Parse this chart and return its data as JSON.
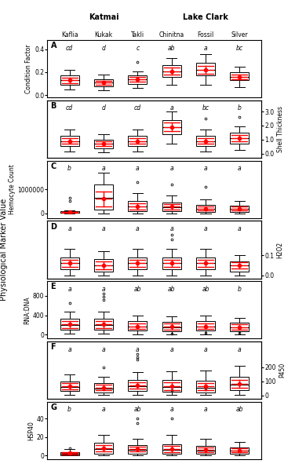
{
  "sites": [
    "Kaflia",
    "Kukak",
    "Takli",
    "Chinitna",
    "Fossil",
    "Silver"
  ],
  "panels": [
    {
      "label": "A",
      "ylabel_left": "Condition Factor",
      "ylabel_right": null,
      "yticks_left": [
        0.0,
        0.2,
        0.4
      ],
      "yticks_right": null,
      "ymin": -0.02,
      "ymax": 0.48,
      "sig_letters": [
        "cd",
        "d",
        "c",
        "ab",
        "a",
        "bc"
      ],
      "data": {
        "Kaflia": {
          "q1": 0.09,
          "med": 0.13,
          "q3": 0.17,
          "lo": 0.05,
          "hi": 0.22,
          "mean": 0.13,
          "outliers": []
        },
        "Kukak": {
          "q1": 0.08,
          "med": 0.11,
          "q3": 0.14,
          "lo": 0.04,
          "hi": 0.18,
          "mean": 0.11,
          "outliers": []
        },
        "Takli": {
          "q1": 0.1,
          "med": 0.14,
          "q3": 0.17,
          "lo": 0.06,
          "hi": 0.21,
          "mean": 0.14,
          "outliers": [
            0.29
          ]
        },
        "Chinitna": {
          "q1": 0.16,
          "med": 0.21,
          "q3": 0.26,
          "lo": 0.09,
          "hi": 0.32,
          "mean": 0.21,
          "outliers": []
        },
        "Fossil": {
          "q1": 0.17,
          "med": 0.22,
          "q3": 0.28,
          "lo": 0.09,
          "hi": 0.36,
          "mean": 0.22,
          "outliers": []
        },
        "Silver": {
          "q1": 0.13,
          "med": 0.16,
          "q3": 0.2,
          "lo": 0.07,
          "hi": 0.25,
          "mean": 0.16,
          "outliers": []
        }
      }
    },
    {
      "label": "B",
      "ylabel_left": null,
      "ylabel_right": "Shell Thickness",
      "yticks_left": null,
      "yticks_right": [
        0.0,
        1.0,
        2.0,
        3.0
      ],
      "ymin": -0.3,
      "ymax": 3.8,
      "sig_letters": [
        "cd",
        "d",
        "cd",
        "a",
        "bc",
        "b"
      ],
      "data": {
        "Kaflia": {
          "q1": 0.55,
          "med": 0.9,
          "q3": 1.25,
          "lo": 0.15,
          "hi": 1.7,
          "mean": 0.9,
          "outliers": []
        },
        "Kukak": {
          "q1": 0.4,
          "med": 0.7,
          "q3": 1.0,
          "lo": 0.1,
          "hi": 1.4,
          "mean": 0.7,
          "outliers": []
        },
        "Takli": {
          "q1": 0.55,
          "med": 0.9,
          "q3": 1.25,
          "lo": 0.15,
          "hi": 1.7,
          "mean": 0.9,
          "outliers": []
        },
        "Chinitna": {
          "q1": 1.4,
          "med": 1.9,
          "q3": 2.4,
          "lo": 0.7,
          "hi": 3.0,
          "mean": 1.9,
          "outliers": []
        },
        "Fossil": {
          "q1": 0.55,
          "med": 0.9,
          "q3": 1.25,
          "lo": 0.15,
          "hi": 1.7,
          "mean": 0.9,
          "outliers": [
            2.5
          ]
        },
        "Silver": {
          "q1": 0.7,
          "med": 1.1,
          "q3": 1.5,
          "lo": 0.25,
          "hi": 1.95,
          "mean": 1.1,
          "outliers": [
            2.6
          ]
        }
      }
    },
    {
      "label": "C",
      "ylabel_left": "Hemocyte Count",
      "ylabel_right": null,
      "yticks_left": [
        0,
        1000000
      ],
      "yticks_right": null,
      "ymin": -200000,
      "ymax": 2200000,
      "sig_letters": [
        "b",
        "a",
        "a",
        "a",
        "a",
        "a"
      ],
      "data": {
        "Kaflia": {
          "q1": 10000,
          "med": 30000,
          "q3": 80000,
          "lo": 0,
          "hi": 120000,
          "mean": 40000,
          "outliers": [
            500000,
            650000
          ]
        },
        "Kukak": {
          "q1": 150000,
          "med": 650000,
          "q3": 1200000,
          "lo": 0,
          "hi": 1700000,
          "mean": 600000,
          "outliers": []
        },
        "Takli": {
          "q1": 100000,
          "med": 280000,
          "q3": 500000,
          "lo": 0,
          "hi": 850000,
          "mean": 280000,
          "outliers": [
            1300000
          ]
        },
        "Chinitna": {
          "q1": 80000,
          "med": 250000,
          "q3": 450000,
          "lo": 0,
          "hi": 750000,
          "mean": 280000,
          "outliers": [
            1200000
          ]
        },
        "Fossil": {
          "q1": 50000,
          "med": 180000,
          "q3": 350000,
          "lo": 0,
          "hi": 580000,
          "mean": 200000,
          "outliers": [
            1100000
          ]
        },
        "Silver": {
          "q1": 50000,
          "med": 180000,
          "q3": 330000,
          "lo": 0,
          "hi": 530000,
          "mean": 190000,
          "outliers": []
        }
      }
    },
    {
      "label": "D",
      "ylabel_left": null,
      "ylabel_right": "H2O2",
      "yticks_left": null,
      "yticks_right": [
        0.0,
        0.1
      ],
      "ymin": -0.015,
      "ymax": 0.27,
      "sig_letters": [
        "a",
        "a",
        "a",
        "a",
        "a",
        "a"
      ],
      "data": {
        "Kaflia": {
          "q1": 0.03,
          "med": 0.06,
          "q3": 0.09,
          "lo": 0.0,
          "hi": 0.13,
          "mean": 0.06,
          "outliers": []
        },
        "Kukak": {
          "q1": 0.02,
          "med": 0.05,
          "q3": 0.08,
          "lo": 0.0,
          "hi": 0.12,
          "mean": 0.05,
          "outliers": []
        },
        "Takli": {
          "q1": 0.03,
          "med": 0.06,
          "q3": 0.09,
          "lo": 0.0,
          "hi": 0.13,
          "mean": 0.06,
          "outliers": []
        },
        "Chinitna": {
          "q1": 0.03,
          "med": 0.06,
          "q3": 0.09,
          "lo": 0.0,
          "hi": 0.13,
          "mean": 0.06,
          "outliers": [
            0.18,
            0.2
          ]
        },
        "Fossil": {
          "q1": 0.03,
          "med": 0.06,
          "q3": 0.09,
          "lo": 0.0,
          "hi": 0.13,
          "mean": 0.06,
          "outliers": []
        },
        "Silver": {
          "q1": 0.02,
          "med": 0.05,
          "q3": 0.07,
          "lo": 0.0,
          "hi": 0.1,
          "mean": 0.05,
          "outliers": []
        }
      }
    },
    {
      "label": "E",
      "ylabel_left": "RNA:DNA",
      "ylabel_right": null,
      "yticks_left": [
        0,
        400,
        800
      ],
      "yticks_right": null,
      "ymin": -80,
      "ymax": 1100,
      "sig_letters": [
        "a",
        "a",
        "ab",
        "ab",
        "ab",
        "b"
      ],
      "data": {
        "Kaflia": {
          "q1": 100,
          "med": 200,
          "q3": 330,
          "lo": 20,
          "hi": 470,
          "mean": 210,
          "outliers": [
            650
          ]
        },
        "Kukak": {
          "q1": 100,
          "med": 200,
          "q3": 330,
          "lo": 20,
          "hi": 470,
          "mean": 210,
          "outliers": [
            720,
            780,
            840
          ]
        },
        "Takli": {
          "q1": 80,
          "med": 170,
          "q3": 280,
          "lo": 10,
          "hi": 390,
          "mean": 175,
          "outliers": []
        },
        "Chinitna": {
          "q1": 70,
          "med": 160,
          "q3": 270,
          "lo": 10,
          "hi": 380,
          "mean": 165,
          "outliers": [
            30
          ]
        },
        "Fossil": {
          "q1": 80,
          "med": 170,
          "q3": 280,
          "lo": 10,
          "hi": 390,
          "mean": 175,
          "outliers": [
            40
          ]
        },
        "Silver": {
          "q1": 70,
          "med": 155,
          "q3": 250,
          "lo": 10,
          "hi": 350,
          "mean": 160,
          "outliers": [
            40
          ]
        }
      }
    },
    {
      "label": "F",
      "ylabel_left": null,
      "ylabel_right": "P450",
      "yticks_left": null,
      "yticks_right": [
        0,
        100,
        200
      ],
      "ymin": -25,
      "ymax": 380,
      "sig_letters": [
        "a",
        "a",
        "a",
        "a",
        "a",
        "a"
      ],
      "data": {
        "Kaflia": {
          "q1": 30,
          "med": 60,
          "q3": 100,
          "lo": 5,
          "hi": 150,
          "mean": 65,
          "outliers": []
        },
        "Kukak": {
          "q1": 20,
          "med": 50,
          "q3": 85,
          "lo": 5,
          "hi": 130,
          "mean": 55,
          "outliers": [
            200
          ]
        },
        "Takli": {
          "q1": 30,
          "med": 65,
          "q3": 110,
          "lo": 5,
          "hi": 165,
          "mean": 70,
          "outliers": [
            250,
            270,
            290
          ]
        },
        "Chinitna": {
          "q1": 25,
          "med": 60,
          "q3": 110,
          "lo": 5,
          "hi": 170,
          "mean": 65,
          "outliers": [
            35
          ]
        },
        "Fossil": {
          "q1": 20,
          "med": 55,
          "q3": 105,
          "lo": 5,
          "hi": 175,
          "mean": 62,
          "outliers": [
            45
          ]
        },
        "Silver": {
          "q1": 35,
          "med": 75,
          "q3": 130,
          "lo": 5,
          "hi": 210,
          "mean": 80,
          "outliers": []
        }
      }
    },
    {
      "label": "G",
      "ylabel_left": "HSP40",
      "ylabel_right": null,
      "yticks_left": [
        0,
        20,
        40
      ],
      "yticks_right": null,
      "ymin": -4,
      "ymax": 58,
      "sig_letters": [
        "b",
        "a",
        "ab",
        "a",
        "a",
        "ab"
      ],
      "data": {
        "Kaflia": {
          "q1": 0.5,
          "med": 2,
          "q3": 4,
          "lo": 0,
          "hi": 7,
          "mean": 2.5,
          "outliers": [
            8
          ]
        },
        "Kukak": {
          "q1": 2,
          "med": 7,
          "q3": 14,
          "lo": 0,
          "hi": 22,
          "mean": 8,
          "outliers": []
        },
        "Takli": {
          "q1": 2,
          "med": 6,
          "q3": 11,
          "lo": 0,
          "hi": 18,
          "mean": 7,
          "outliers": [
            35,
            40
          ]
        },
        "Chinitna": {
          "q1": 2,
          "med": 6,
          "q3": 12,
          "lo": 0,
          "hi": 22,
          "mean": 7,
          "outliers": [
            40
          ]
        },
        "Fossil": {
          "q1": 2,
          "med": 5,
          "q3": 10,
          "lo": 0,
          "hi": 18,
          "mean": 6,
          "outliers": []
        },
        "Silver": {
          "q1": 2,
          "med": 5,
          "q3": 9,
          "lo": 0,
          "hi": 15,
          "mean": 5.5,
          "outliers": []
        }
      }
    }
  ],
  "box_color": "white",
  "median_color": "black",
  "mean_color": "red",
  "whisker_color": "black",
  "outlier_color": "black",
  "fig_bg": "white",
  "title_katmai": "Katmai",
  "title_lakeclark": "Lake Clark",
  "main_ylabel": "Physiological Marker Value",
  "n_sites": 6
}
